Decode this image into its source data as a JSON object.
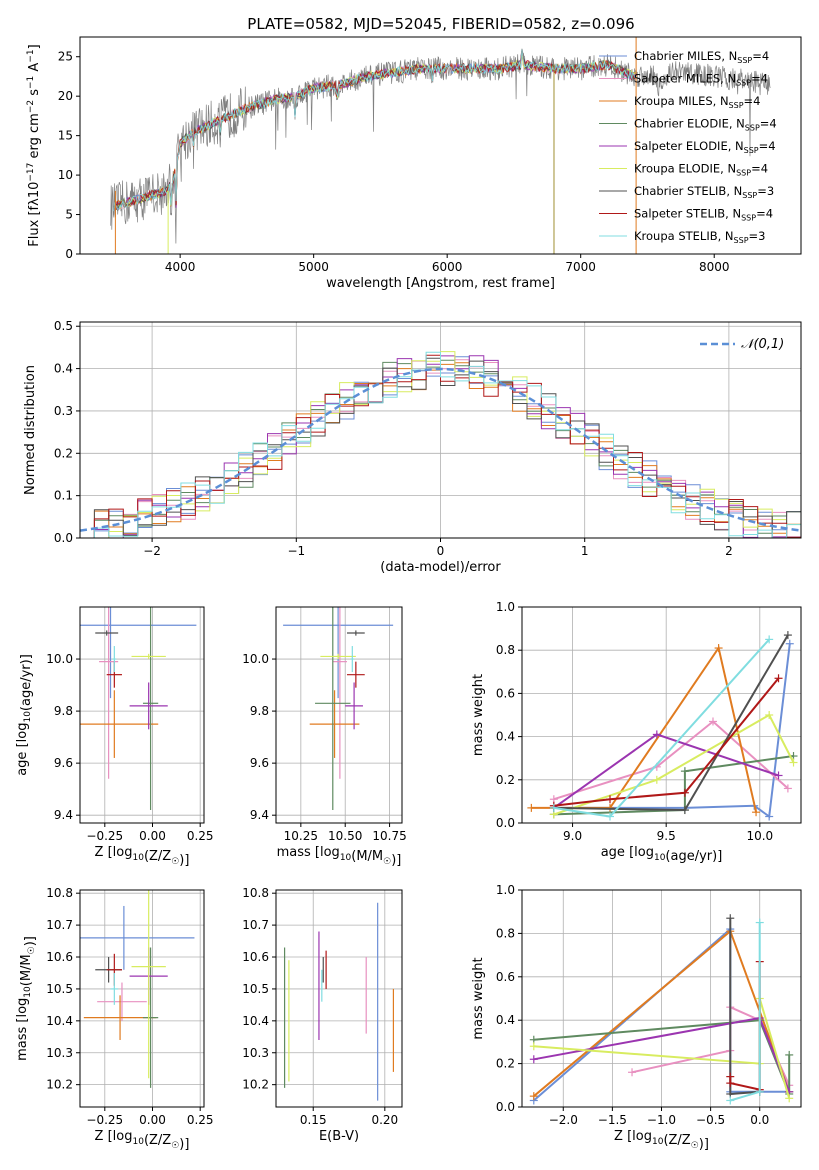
{
  "figure": {
    "title": "PLATE=0582, MJD=52045, FIBERID=0582, z=0.096"
  },
  "models": [
    {
      "name": "Chabrier MILES",
      "nssp": "4",
      "color": "#6b8ed6"
    },
    {
      "name": "Salpeter MILES",
      "nssp": "4",
      "color": "#e890c0"
    },
    {
      "name": "Kroupa MILES",
      "nssp": "4",
      "color": "#e07b20"
    },
    {
      "name": "Chabrier ELODIE",
      "nssp": "4",
      "color": "#5f8a60"
    },
    {
      "name": "Salpeter ELODIE",
      "nssp": "4",
      "color": "#9b35b0"
    },
    {
      "name": "Kroupa ELODIE",
      "nssp": "4",
      "color": "#d8ec60"
    },
    {
      "name": "Chabrier STELIB",
      "nssp": "3",
      "color": "#505050"
    },
    {
      "name": "Salpeter STELIB",
      "nssp": "4",
      "color": "#b01818"
    },
    {
      "name": "Kroupa STELIB",
      "nssp": "3",
      "color": "#80dde0"
    }
  ],
  "chart_data": [
    {
      "id": "spectrum",
      "type": "line",
      "xlabel": "wavelength [Angstrom, rest frame]",
      "xlim": [
        3250,
        8650
      ],
      "ylim": [
        0,
        27.5
      ],
      "xticks": [
        4000,
        5000,
        6000,
        7000,
        8000
      ],
      "yticks": [
        0,
        5,
        10,
        15,
        20,
        25
      ],
      "grid": false,
      "legend": "upper-right",
      "continuum": {
        "x": [
          3500,
          3700,
          3900,
          3950,
          4000,
          4100,
          4300,
          4500,
          4700,
          4860,
          5000,
          5200,
          5400,
          5600,
          5800,
          6000,
          6200,
          6400,
          6560,
          6800,
          7000,
          7200,
          7400,
          7600,
          7800,
          8000,
          8200,
          8400
        ],
        "y": [
          6,
          7,
          8,
          9.5,
          14,
          15.5,
          17,
          18.5,
          19.5,
          20,
          21,
          21.5,
          22.5,
          23,
          23.5,
          23.5,
          23.5,
          23.5,
          24,
          23.5,
          23.5,
          24,
          22.5,
          23,
          23,
          22.5,
          22,
          21.5
        ]
      }
    },
    {
      "id": "residuals",
      "type": "bar",
      "xlabel": "(data-model)/error",
      "ylabel": "Normed distribution",
      "xlim": [
        -2.5,
        2.5
      ],
      "ylim": [
        0,
        0.51
      ],
      "xticks": [
        -2,
        -1,
        0,
        1,
        2
      ],
      "yticks": [
        0.0,
        0.1,
        0.2,
        0.3,
        0.4,
        0.5
      ],
      "grid": true,
      "bin_width": 0.1,
      "reference": {
        "label": "𝒩(0,1)",
        "mean": 0,
        "sigma": 1
      }
    },
    {
      "id": "age-vs-Z",
      "type": "scatter",
      "xlabel": "Z [log₁₀(Z/Z☉)]",
      "ylabel": "age  [log₁₀(age/yr)]",
      "xlim": [
        -0.38,
        0.27
      ],
      "ylim": [
        9.37,
        10.2
      ],
      "xticks": [
        -0.25,
        0.0,
        0.25
      ],
      "yticks": [
        9.4,
        9.6,
        9.8,
        10.0
      ],
      "grid": true,
      "points": [
        {
          "x": -0.22,
          "xerr": 0.45,
          "y": 10.13,
          "yerr": 0.28
        },
        {
          "x": -0.23,
          "xerr": 0.05,
          "y": 9.99,
          "yerr": 0.45
        },
        {
          "x": -0.2,
          "xerr": 0.23,
          "y": 9.75,
          "yerr": 0.13
        },
        {
          "x": -0.01,
          "xerr": 0.04,
          "y": 9.83,
          "yerr": 0.41
        },
        {
          "x": -0.02,
          "xerr": 0.1,
          "y": 9.82,
          "yerr": 0.09
        },
        {
          "x": -0.02,
          "xerr": 0.09,
          "y": 10.01,
          "yerr": 0.01
        },
        {
          "x": -0.24,
          "xerr": 0.06,
          "y": 10.1,
          "yerr": 0.01
        },
        {
          "x": -0.2,
          "xerr": 0.04,
          "y": 9.94,
          "yerr": 0.05
        },
        {
          "x": -0.2,
          "xerr": 0.01,
          "y": 10.0,
          "yerr": 0.05
        }
      ]
    },
    {
      "id": "age-vs-mass",
      "type": "scatter",
      "xlabel": "mass [log₁₀(M/M☉)]",
      "ylim": [
        9.37,
        10.2
      ],
      "xlim": [
        10.11,
        10.82
      ],
      "xticks": [
        10.25,
        10.5,
        10.75
      ],
      "yticks": [
        9.4,
        9.6,
        9.8,
        10.0
      ],
      "grid": true,
      "points": [
        {
          "x": 10.46,
          "xerr": 0.31,
          "y": 10.13,
          "yerr": 0.28
        },
        {
          "x": 10.47,
          "xerr": 0.04,
          "y": 9.99,
          "yerr": 0.45
        },
        {
          "x": 10.44,
          "xerr": 0.14,
          "y": 9.75,
          "yerr": 0.13
        },
        {
          "x": 10.43,
          "xerr": 0.1,
          "y": 9.83,
          "yerr": 0.41
        },
        {
          "x": 10.55,
          "xerr": 0.05,
          "y": 9.82,
          "yerr": 0.09
        },
        {
          "x": 10.46,
          "xerr": 0.1,
          "y": 10.01,
          "yerr": 0.01
        },
        {
          "x": 10.56,
          "xerr": 0.05,
          "y": 10.1,
          "yerr": 0.01
        },
        {
          "x": 10.56,
          "xerr": 0.05,
          "y": 9.94,
          "yerr": 0.05
        },
        {
          "x": 10.54,
          "xerr": 0.01,
          "y": 10.0,
          "yerr": 0.05
        }
      ]
    },
    {
      "id": "weight-vs-age",
      "type": "line",
      "xlabel": "age  [log₁₀(age/yr)]",
      "ylabel": "mass weight",
      "xlim": [
        8.73,
        10.22
      ],
      "ylim": [
        0,
        1.0
      ],
      "xticks": [
        9.0,
        9.5,
        10.0
      ],
      "yticks": [
        0.0,
        0.2,
        0.4,
        0.6,
        0.8,
        1.0
      ],
      "grid": true,
      "series": [
        {
          "x": [
            8.9,
            9.6,
            9.97,
            10.05,
            10.16
          ],
          "y": [
            0.07,
            0.07,
            0.08,
            0.03,
            0.83
          ]
        },
        {
          "x": [
            8.9,
            9.45,
            9.75,
            10.15
          ],
          "y": [
            0.11,
            0.26,
            0.47,
            0.16
          ]
        },
        {
          "x": [
            8.78,
            9.2,
            9.78,
            9.98
          ],
          "y": [
            0.07,
            0.07,
            0.81,
            0.05
          ]
        },
        {
          "x": [
            8.9,
            9.6,
            9.6,
            10.18
          ],
          "y": [
            0.04,
            0.06,
            0.24,
            0.31
          ]
        },
        {
          "x": [
            8.9,
            9.45,
            10.1
          ],
          "y": [
            0.07,
            0.41,
            0.22
          ]
        },
        {
          "x": [
            8.9,
            9.45,
            10.05,
            10.18
          ],
          "y": [
            0.04,
            0.2,
            0.5,
            0.28
          ]
        },
        {
          "x": [
            8.9,
            9.6,
            10.15
          ],
          "y": [
            0.07,
            0.06,
            0.87
          ]
        },
        {
          "x": [
            8.9,
            9.2,
            9.6,
            10.1
          ],
          "y": [
            0.08,
            0.11,
            0.14,
            0.67
          ]
        },
        {
          "x": [
            8.9,
            9.2,
            10.05
          ],
          "y": [
            0.07,
            0.03,
            0.85
          ]
        }
      ]
    },
    {
      "id": "mass-vs-Z",
      "type": "scatter",
      "xlabel": "Z [log₁₀(Z/Z☉)]",
      "ylabel": "mass [log₁₀(M/M☉)]",
      "xlim": [
        -0.38,
        0.27
      ],
      "ylim": [
        10.13,
        10.81
      ],
      "xticks": [
        -0.25,
        0.0,
        0.25
      ],
      "yticks": [
        10.2,
        10.3,
        10.4,
        10.5,
        10.6,
        10.7,
        10.8
      ],
      "grid": true,
      "points": [
        {
          "x": -0.15,
          "xerr": 0.37,
          "y": 10.66,
          "yerr": 0.1
        },
        {
          "x": -0.16,
          "xerr": 0.13,
          "y": 10.46,
          "yerr": 0.06
        },
        {
          "x": -0.17,
          "xerr": 0.19,
          "y": 10.41,
          "yerr": 0.07
        },
        {
          "x": -0.01,
          "xerr": 0.04,
          "y": 10.41,
          "yerr": 0.22
        },
        {
          "x": -0.02,
          "xerr": 0.1,
          "y": 10.54,
          "yerr": 0.09
        },
        {
          "x": -0.02,
          "xerr": 0.09,
          "y": 10.57,
          "yerr": 0.35
        },
        {
          "x": -0.23,
          "xerr": 0.07,
          "y": 10.56,
          "yerr": 0.04
        },
        {
          "x": -0.2,
          "xerr": 0.04,
          "y": 10.56,
          "yerr": 0.05
        },
        {
          "x": -0.2,
          "xerr": 0.02,
          "y": 10.5,
          "yerr": 0.05
        }
      ]
    },
    {
      "id": "mass-vs-ebv",
      "type": "scatter",
      "xlabel": "E(B-V)",
      "xlim": [
        0.124,
        0.212
      ],
      "ylim": [
        10.13,
        10.81
      ],
      "xticks": [
        0.15,
        0.2
      ],
      "yticks": [
        10.2,
        10.3,
        10.4,
        10.5,
        10.6,
        10.7,
        10.8
      ],
      "grid": true,
      "points": [
        {
          "x": 0.195,
          "y": 10.46,
          "yerr": 0.31
        },
        {
          "x": 0.187,
          "y": 10.48,
          "yerr": 0.12
        },
        {
          "x": 0.206,
          "y": 10.37,
          "yerr": 0.13
        },
        {
          "x": 0.13,
          "y": 10.41,
          "yerr": 0.22
        },
        {
          "x": 0.154,
          "y": 10.51,
          "yerr": 0.17
        },
        {
          "x": 0.133,
          "y": 10.4,
          "yerr": 0.19
        },
        {
          "x": 0.157,
          "y": 10.56,
          "yerr": 0.04
        },
        {
          "x": 0.159,
          "y": 10.56,
          "yerr": 0.06
        },
        {
          "x": 0.156,
          "y": 10.51,
          "yerr": 0.05
        }
      ]
    },
    {
      "id": "weight-vs-Z",
      "type": "line",
      "xlabel": "Z [log₁₀(Z/Z☉)]",
      "ylabel": "mass weight",
      "xlim": [
        -2.42,
        0.42
      ],
      "ylim": [
        0,
        1.0
      ],
      "xticks": [
        -2.0,
        -1.5,
        -1.0,
        -0.5,
        0.0
      ],
      "yticks": [
        0.0,
        0.2,
        0.4,
        0.6,
        0.8,
        1.0
      ],
      "grid": true,
      "series": [
        {
          "x": [
            -2.3,
            -0.3,
            -0.3,
            0.3
          ],
          "y": [
            0.03,
            0.82,
            0.07,
            0.07
          ]
        },
        {
          "x": [
            -1.3,
            -0.3,
            -0.3,
            0.0,
            0.3
          ],
          "y": [
            0.16,
            0.26,
            0.46,
            0.4,
            0.1
          ]
        },
        {
          "x": [
            -2.3,
            -0.3,
            0.3
          ],
          "y": [
            0.05,
            0.81,
            0.07
          ]
        },
        {
          "x": [
            -2.3,
            0.0,
            0.3,
            0.3
          ],
          "y": [
            0.31,
            0.4,
            0.06,
            0.24
          ]
        },
        {
          "x": [
            -2.3,
            0.0,
            0.3
          ],
          "y": [
            0.22,
            0.41,
            0.07
          ]
        },
        {
          "x": [
            -2.3,
            0.0,
            0.0,
            0.3
          ],
          "y": [
            0.28,
            0.2,
            0.5,
            0.04
          ]
        },
        {
          "x": [
            -0.3,
            -0.3,
            0.0
          ],
          "y": [
            0.87,
            0.06,
            0.07
          ]
        },
        {
          "x": [
            -0.3,
            -0.3,
            0.0,
            0.0
          ],
          "y": [
            0.14,
            0.11,
            0.08,
            0.67
          ]
        },
        {
          "x": [
            -0.3,
            0.0,
            0.0
          ],
          "y": [
            0.03,
            0.07,
            0.85
          ]
        }
      ]
    }
  ]
}
